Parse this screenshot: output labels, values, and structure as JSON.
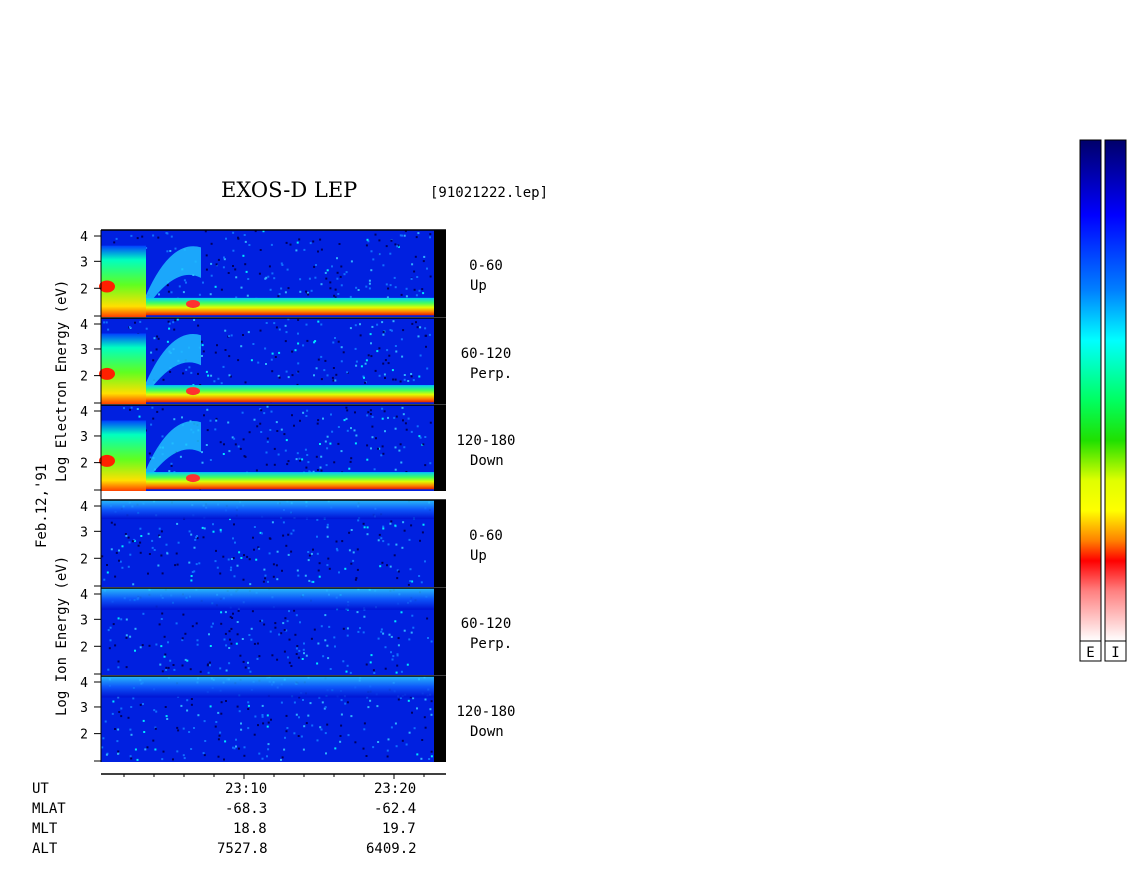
{
  "header": {
    "title": "EXOS-D LEP",
    "file": "[91021222.lep]"
  },
  "labels": {
    "date": "Feb.12,'91",
    "electron_axis": "Log  Electron  Energy  (eV)",
    "ion_axis": "Log  Ion  Energy  (eV)"
  },
  "chart_data": {
    "type": "heatmap",
    "title": "EXOS-D LEP",
    "y_ticks": [
      "4",
      "3",
      "2"
    ],
    "panels": [
      {
        "species": "Electron",
        "angle": "0-60",
        "direction": "Up"
      },
      {
        "species": "Electron",
        "angle": "60-120",
        "direction": "Perp."
      },
      {
        "species": "Electron",
        "angle": "120-180",
        "direction": "Down"
      },
      {
        "species": "Ion",
        "angle": "0-60",
        "direction": "Up"
      },
      {
        "species": "Ion",
        "angle": "60-120",
        "direction": "Perp."
      },
      {
        "species": "Ion",
        "angle": "120-180",
        "direction": "Down"
      }
    ],
    "x_axis": {
      "rows": [
        {
          "name": "UT",
          "values": [
            "23:10",
            "23:20"
          ]
        },
        {
          "name": "MLAT",
          "values": [
            "-68.3",
            "-62.4"
          ]
        },
        {
          "name": "MLT",
          "values": [
            "18.8",
            "19.7"
          ]
        },
        {
          "name": "ALT",
          "values": [
            "7527.8",
            "6409.2"
          ]
        }
      ]
    },
    "colorbar_labels": [
      "E",
      "I"
    ]
  }
}
